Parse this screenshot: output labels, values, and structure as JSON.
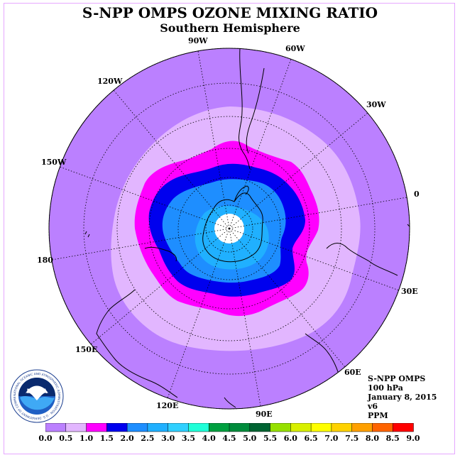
{
  "title": "S-NPP OMPS OZONE MIXING RATIO",
  "subtitle": "Southern Hemisphere",
  "longitude_labels": [
    "90W",
    "60W",
    "30W",
    "0",
    "30E",
    "60E",
    "90E",
    "120E",
    "150E",
    "180",
    "150W",
    "120W"
  ],
  "info": {
    "instrument": "S-NPP OMPS",
    "level": "100 hPa",
    "date": "January 8, 2015",
    "version": "v6",
    "units": "PPM"
  },
  "logo": {
    "text": "NOAA",
    "ring_text": "NATIONAL OCEANIC AND ATMOSPHERIC ADMINISTRATION · U.S. DEPARTMENT OF COMMERCE"
  },
  "colorbar": {
    "ticks": [
      "0.0",
      "0.5",
      "1.0",
      "1.5",
      "2.0",
      "2.5",
      "3.0",
      "3.5",
      "4.0",
      "4.5",
      "5.0",
      "5.5",
      "6.0",
      "6.5",
      "7.0",
      "7.5",
      "8.0",
      "8.5",
      "9.0"
    ],
    "colors": [
      "#bb80ff",
      "#e2b6ff",
      "#ff00ff",
      "#0000ee",
      "#1e8eff",
      "#20b0ff",
      "#30d0ff",
      "#20ffd8",
      "#00a040",
      "#008c3c",
      "#006432",
      "#96e000",
      "#d8f000",
      "#ffff00",
      "#ffd200",
      "#ffa000",
      "#ff6400",
      "#ff0000",
      "#9a5a3a"
    ]
  },
  "map_data": {
    "projection": "south polar stereographic",
    "contour_levels_ppm": [
      0.5,
      1.0,
      1.5,
      2.0,
      2.5
    ],
    "fill_colors": {
      "background": "#bb80ff",
      "light": "#e2b6ff",
      "magenta": "#ff00ff",
      "blue": "#0000ee",
      "mid_blue": "#1e8eff",
      "light_blue": "#20b0ff",
      "missing": "#ffffff"
    }
  }
}
